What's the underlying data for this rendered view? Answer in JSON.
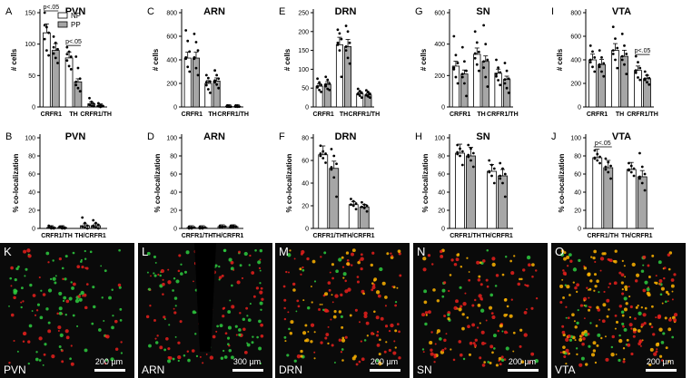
{
  "colors": {
    "np_fill": "#ffffff",
    "pp_fill": "#a6a6a6",
    "axis": "#000000",
    "point": "#000000",
    "micro_bg": "#0a0a0a",
    "green": "#2ecc40",
    "red": "#e8201c",
    "orange": "#ffb400",
    "scale_text": "#ffffff"
  },
  "legend": {
    "np": "NP",
    "pp": "PP"
  },
  "chart_data": [
    {
      "panel": "A",
      "title": "PVN",
      "type": "bar",
      "ylabel": "# cells",
      "ylim": [
        0,
        150
      ],
      "yticks": [
        0,
        50,
        100,
        150
      ],
      "categories": [
        "CRFR1",
        "TH",
        "CRFR1/TH"
      ],
      "series": [
        {
          "name": "NP",
          "values": [
            118,
            78,
            5
          ],
          "points": [
            [
              150,
              127,
              118,
              108,
              90,
              82,
              130
            ],
            [
              95,
              88,
              80,
              74,
              65,
              60,
              84
            ],
            [
              14,
              8,
              5,
              3,
              2,
              1,
              4
            ]
          ]
        },
        {
          "name": "PP",
          "values": [
            90,
            40,
            2
          ],
          "points": [
            [
              112,
              102,
              92,
              85,
              78,
              70,
              95
            ],
            [
              80,
              62,
              45,
              35,
              30,
              25,
              40
            ],
            [
              6,
              3,
              2,
              1,
              0,
              1,
              2
            ]
          ]
        }
      ],
      "annotations": [
        {
          "label": "p<.05",
          "category": 0,
          "y": 150
        },
        {
          "label": "p<.05",
          "category": 1,
          "y": 95
        }
      ]
    },
    {
      "panel": "C",
      "title": "ARN",
      "type": "bar",
      "ylabel": "# cells",
      "ylim": [
        0,
        800
      ],
      "yticks": [
        0,
        200,
        400,
        600,
        800
      ],
      "categories": [
        "CRFR1",
        "TH",
        "CRFR1/TH"
      ],
      "series": [
        {
          "name": "NP",
          "values": [
            415,
            200,
            5
          ],
          "points": [
            [
              650,
              560,
              470,
              410,
              340,
              300,
              420
            ],
            [
              270,
              245,
              215,
              185,
              150,
              120,
              210
            ],
            [
              10,
              6,
              4,
              3,
              2,
              2,
              5
            ]
          ]
        },
        {
          "name": "PP",
          "values": [
            415,
            220,
            5
          ],
          "points": [
            [
              620,
              550,
              480,
              410,
              330,
              270,
              420
            ],
            [
              310,
              270,
              240,
              210,
              190,
              160,
              225
            ],
            [
              9,
              7,
              4,
              3,
              2,
              3,
              5
            ]
          ]
        }
      ],
      "annotations": []
    },
    {
      "panel": "E",
      "title": "DRN",
      "type": "bar",
      "ylabel": "# cells",
      "ylim": [
        0,
        250
      ],
      "yticks": [
        0,
        50,
        100,
        150,
        200,
        250
      ],
      "categories": [
        "CRFR1",
        "TH",
        "CRFR1/TH"
      ],
      "series": [
        {
          "name": "NP",
          "values": [
            55,
            165,
            35
          ],
          "points": [
            [
              75,
              65,
              58,
              52,
              45,
              40,
              55
            ],
            [
              205,
              195,
              180,
              165,
              150,
              80,
              170
            ],
            [
              48,
              42,
              38,
              34,
              30,
              25,
              35
            ]
          ]
        },
        {
          "name": "PP",
          "values": [
            60,
            160,
            32
          ],
          "points": [
            [
              80,
              72,
              62,
              55,
              48,
              45,
              60
            ],
            [
              215,
              200,
              170,
              150,
              130,
              115,
              160
            ],
            [
              44,
              40,
              35,
              31,
              28,
              25,
              32
            ]
          ]
        }
      ],
      "annotations": []
    },
    {
      "panel": "G",
      "title": "SN",
      "type": "bar",
      "ylabel": "# cells",
      "ylim": [
        0,
        600
      ],
      "yticks": [
        0,
        200,
        400,
        600
      ],
      "categories": [
        "CRFR1",
        "TH",
        "CRFR1/TH"
      ],
      "series": [
        {
          "name": "NP",
          "values": [
            260,
            335,
            215
          ],
          "points": [
            [
              450,
              330,
              280,
              240,
              190,
              150,
              250
            ],
            [
              480,
              410,
              350,
              310,
              270,
              230,
              340
            ],
            [
              300,
              250,
              220,
              195,
              170,
              140,
              210
            ]
          ]
        },
        {
          "name": "PP",
          "values": [
            210,
            290,
            175
          ],
          "points": [
            [
              380,
              290,
              230,
              190,
              150,
              70,
              210
            ],
            [
              520,
              400,
              300,
              250,
              190,
              130,
              290
            ],
            [
              280,
              230,
              180,
              150,
              120,
              90,
              175
            ]
          ]
        }
      ],
      "annotations": []
    },
    {
      "panel": "I",
      "title": "VTA",
      "type": "bar",
      "ylabel": "# cells",
      "ylim": [
        0,
        800
      ],
      "yticks": [
        0,
        200,
        400,
        600,
        800
      ],
      "categories": [
        "CRFR1",
        "TH",
        "CRFR1/TH"
      ],
      "series": [
        {
          "name": "NP",
          "values": [
            400,
            480,
            310
          ],
          "points": [
            [
              520,
              470,
              420,
              380,
              340,
              300,
              400
            ],
            [
              680,
              580,
              500,
              450,
              400,
              330,
              480
            ],
            [
              430,
              380,
              330,
              290,
              250,
              230,
              310
            ]
          ]
        },
        {
          "name": "PP",
          "values": [
            360,
            430,
            240
          ],
          "points": [
            [
              480,
              420,
              370,
              340,
              300,
              260,
              360
            ],
            [
              620,
              520,
              450,
              400,
              360,
              280,
              430
            ],
            [
              300,
              270,
              245,
              230,
              210,
              190,
              240
            ]
          ]
        }
      ],
      "annotations": [
        {
          "label": "p<.05",
          "category": 2,
          "y": 430
        }
      ]
    },
    {
      "panel": "B",
      "title": "PVN",
      "type": "bar",
      "ylabel": "% co-localization",
      "ylim": [
        0,
        100
      ],
      "yticks": [
        0,
        20,
        40,
        60,
        80,
        100
      ],
      "categories": [
        "CRFR1/TH",
        "TH/CRFR1"
      ],
      "series": [
        {
          "name": "NP",
          "values": [
            1,
            3
          ],
          "points": [
            [
              3,
              2,
              1,
              1,
              0,
              0,
              1
            ],
            [
              12,
              6,
              3,
              2,
              1,
              0,
              2
            ]
          ]
        },
        {
          "name": "PP",
          "values": [
            1,
            3
          ],
          "points": [
            [
              2,
              2,
              1,
              1,
              0,
              0,
              1
            ],
            [
              9,
              6,
              4,
              2,
              1,
              0,
              3
            ]
          ]
        }
      ],
      "annotations": []
    },
    {
      "panel": "D",
      "title": "ARN",
      "type": "bar",
      "ylabel": "% co-localization",
      "ylim": [
        0,
        100
      ],
      "yticks": [
        0,
        20,
        40,
        60,
        80,
        100
      ],
      "categories": [
        "CRFR1/TH",
        "TH/CRFR1"
      ],
      "series": [
        {
          "name": "NP",
          "values": [
            1,
            2
          ],
          "points": [
            [
              2,
              1,
              1,
              0,
              0,
              1,
              1
            ],
            [
              3,
              2,
              2,
              1,
              1,
              2,
              2
            ]
          ]
        },
        {
          "name": "PP",
          "values": [
            1,
            2
          ],
          "points": [
            [
              2,
              1,
              1,
              0,
              0,
              1,
              1
            ],
            [
              3,
              3,
              2,
              1,
              1,
              2,
              2
            ]
          ]
        }
      ],
      "annotations": []
    },
    {
      "panel": "F",
      "title": "DRN",
      "type": "bar",
      "ylabel": "% co-localization",
      "ylim": [
        0,
        80
      ],
      "yticks": [
        0,
        20,
        40,
        60,
        80
      ],
      "categories": [
        "CRFR1/TH",
        "TH/CRFR1"
      ],
      "series": [
        {
          "name": "NP",
          "values": [
            65,
            21
          ],
          "points": [
            [
              73,
              68,
              66,
              64,
              62,
              58,
              66
            ],
            [
              26,
              24,
              22,
              21,
              20,
              17,
              21
            ]
          ]
        },
        {
          "name": "PP",
          "values": [
            53,
            19
          ],
          "points": [
            [
              70,
              64,
              57,
              52,
              45,
              28,
              54
            ],
            [
              23,
              21,
              20,
              19,
              18,
              15,
              19
            ]
          ]
        }
      ],
      "annotations": []
    },
    {
      "panel": "H",
      "title": "SN",
      "type": "bar",
      "ylabel": "% co-localization",
      "ylim": [
        0,
        100
      ],
      "yticks": [
        0,
        20,
        40,
        60,
        80,
        100
      ],
      "categories": [
        "CRFR1/TH",
        "TH/CRFR1"
      ],
      "series": [
        {
          "name": "NP",
          "values": [
            83,
            63
          ],
          "points": [
            [
              92,
              88,
              85,
              82,
              80,
              70,
              84
            ],
            [
              75,
              70,
              66,
              62,
              58,
              50,
              63
            ]
          ]
        },
        {
          "name": "PP",
          "values": [
            80,
            58
          ],
          "points": [
            [
              92,
              88,
              83,
              79,
              75,
              68,
              81
            ],
            [
              72,
              66,
              60,
              55,
              50,
              35,
              58
            ]
          ]
        }
      ],
      "annotations": []
    },
    {
      "panel": "J",
      "title": "VTA",
      "type": "bar",
      "ylabel": "% co-localization",
      "ylim": [
        0,
        100
      ],
      "yticks": [
        0,
        20,
        40,
        60,
        80,
        100
      ],
      "categories": [
        "CRFR1/TH",
        "TH/CRFR1"
      ],
      "series": [
        {
          "name": "NP",
          "values": [
            78,
            65
          ],
          "points": [
            [
              86,
              82,
              79,
              77,
              75,
              72,
              78
            ],
            [
              72,
              69,
              66,
              64,
              62,
              58,
              65
            ]
          ]
        },
        {
          "name": "PP",
          "values": [
            67,
            57
          ],
          "points": [
            [
              77,
              73,
              69,
              65,
              62,
              55,
              68
            ],
            [
              83,
              68,
              60,
              55,
              50,
              42,
              57
            ]
          ]
        }
      ],
      "annotations": [
        {
          "label": "p<.05",
          "category": 0,
          "y": 88
        }
      ]
    }
  ],
  "micrographs": [
    {
      "panel": "K",
      "region": "PVN",
      "scale": "200 µm"
    },
    {
      "panel": "L",
      "region": "ARN",
      "scale": "300 µm"
    },
    {
      "panel": "M",
      "region": "DRN",
      "scale": "200 µm"
    },
    {
      "panel": "N",
      "region": "SN",
      "scale": "200 µm"
    },
    {
      "panel": "O",
      "region": "VTA",
      "scale": "200 µm"
    }
  ]
}
